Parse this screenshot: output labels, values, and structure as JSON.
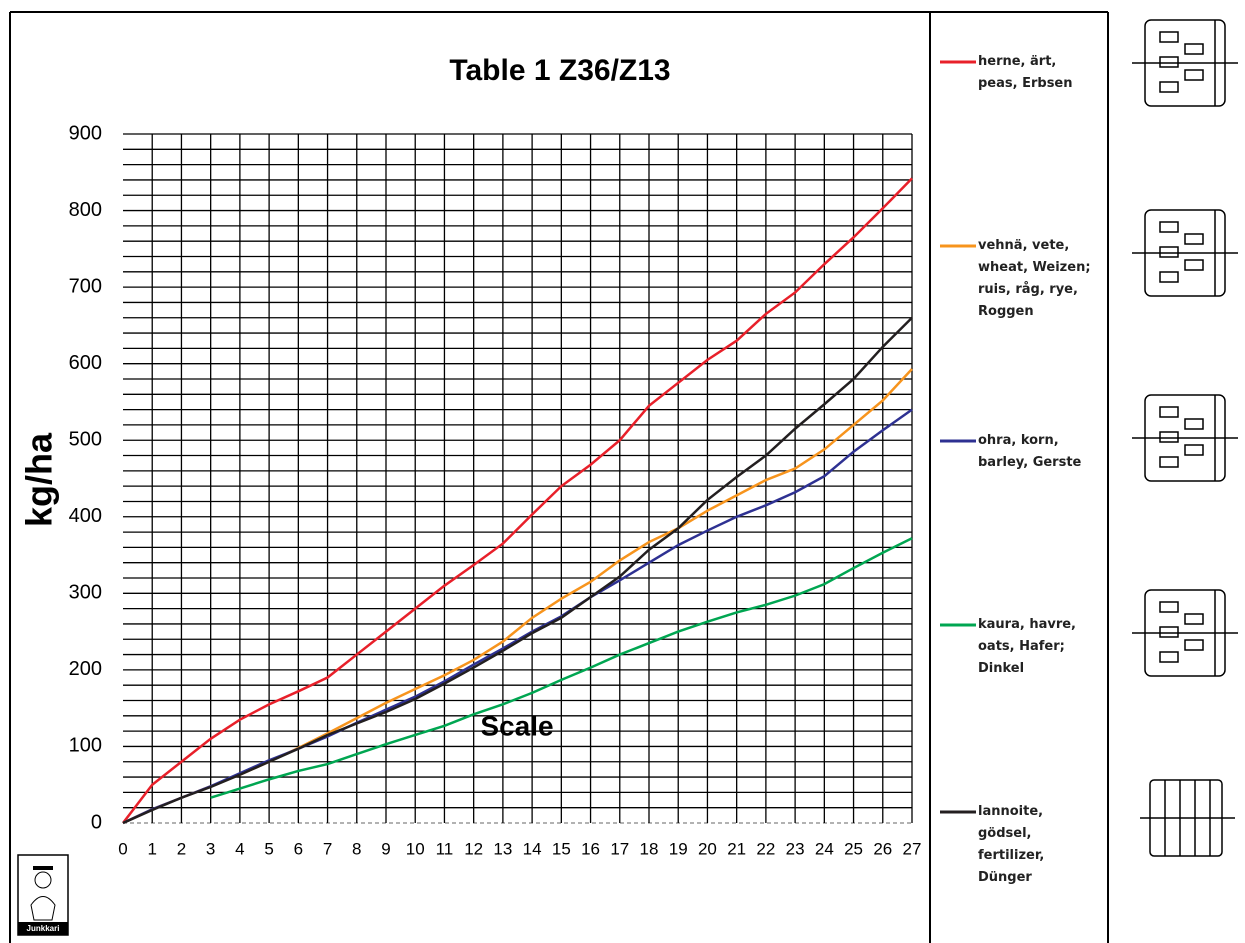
{
  "chart_data": {
    "type": "line",
    "title": "Table 1 Z36/Z13",
    "x_label": "Scale",
    "y_label": "kg/ha",
    "logo": "Junkkari",
    "x": [
      0,
      1,
      2,
      3,
      4,
      5,
      6,
      7,
      8,
      9,
      10,
      11,
      12,
      13,
      14,
      15,
      16,
      17,
      18,
      19,
      20,
      21,
      22,
      23,
      24,
      25,
      26,
      27
    ],
    "xlim": [
      0,
      27
    ],
    "xticks": [
      0,
      1,
      2,
      3,
      4,
      5,
      6,
      7,
      8,
      9,
      10,
      11,
      12,
      13,
      14,
      15,
      16,
      17,
      18,
      19,
      20,
      21,
      22,
      23,
      24,
      25,
      26,
      27
    ],
    "ylim": [
      0,
      900
    ],
    "yticks": [
      0,
      100,
      200,
      300,
      400,
      500,
      600,
      700,
      800,
      900
    ],
    "grid": true,
    "series": [
      {
        "name": "herne, ärt, peas, Erbsen",
        "color": "#e8202a",
        "values": [
          0,
          50,
          80,
          110,
          135,
          155,
          172,
          190,
          220,
          250,
          280,
          310,
          337,
          365,
          403,
          440,
          468,
          500,
          545,
          575,
          605,
          630,
          665,
          693,
          730,
          765,
          803,
          842
        ]
      },
      {
        "name": "vehnä, vete, wheat, Weizen; ruis, råg, rye, Roggen",
        "color": "#f7941d",
        "values": [
          0,
          18,
          33,
          48,
          63,
          80,
          98,
          117,
          137,
          157,
          175,
          193,
          213,
          237,
          268,
          293,
          315,
          343,
          367,
          385,
          408,
          428,
          448,
          463,
          488,
          520,
          552,
          593
        ]
      },
      {
        "name": "ohra, korn, barley, Gerste",
        "color": "#2e3192",
        "values": [
          0,
          18,
          33,
          48,
          65,
          82,
          97,
          113,
          131,
          148,
          165,
          185,
          207,
          228,
          250,
          270,
          295,
          317,
          340,
          363,
          382,
          400,
          415,
          432,
          453,
          485,
          513,
          540
        ]
      },
      {
        "name": "kaura, havre, oats, Hafer; Dinkel",
        "color": "#00a651",
        "values": [
          null,
          null,
          null,
          33,
          45,
          57,
          68,
          77,
          90,
          103,
          115,
          127,
          142,
          155,
          170,
          187,
          203,
          220,
          235,
          250,
          263,
          275,
          285,
          297,
          312,
          333,
          353,
          372
        ]
      },
      {
        "name": "lannoite, gödsel, fertilizer, Dünger",
        "color": "#231f20",
        "values": [
          0,
          17,
          33,
          47,
          63,
          80,
          97,
          115,
          130,
          145,
          162,
          182,
          203,
          225,
          248,
          268,
          295,
          322,
          357,
          385,
          422,
          452,
          480,
          515,
          547,
          580,
          622,
          660
        ]
      }
    ]
  }
}
